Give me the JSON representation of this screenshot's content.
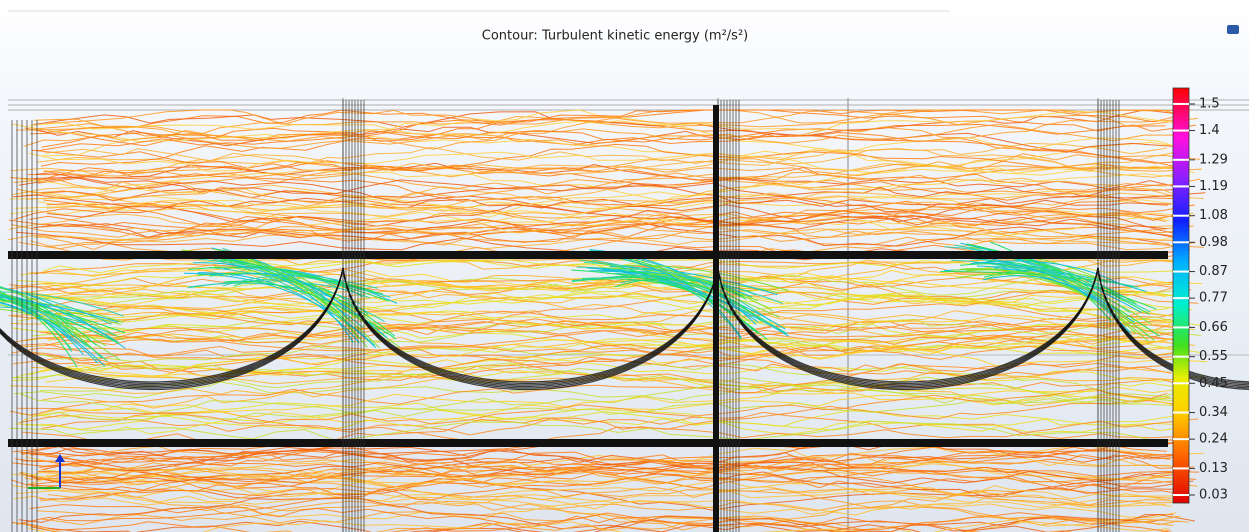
{
  "plot": {
    "title": "Contour: Turbulent kinetic energy (m²/s²)",
    "colorbar": {
      "lim": [
        0,
        1.56
      ],
      "ticks": [
        1.5,
        1.4,
        1.29,
        1.19,
        1.08,
        0.98,
        0.87,
        0.77,
        0.66,
        0.55,
        0.45,
        0.34,
        0.24,
        0.13,
        0.03
      ]
    }
  }
}
